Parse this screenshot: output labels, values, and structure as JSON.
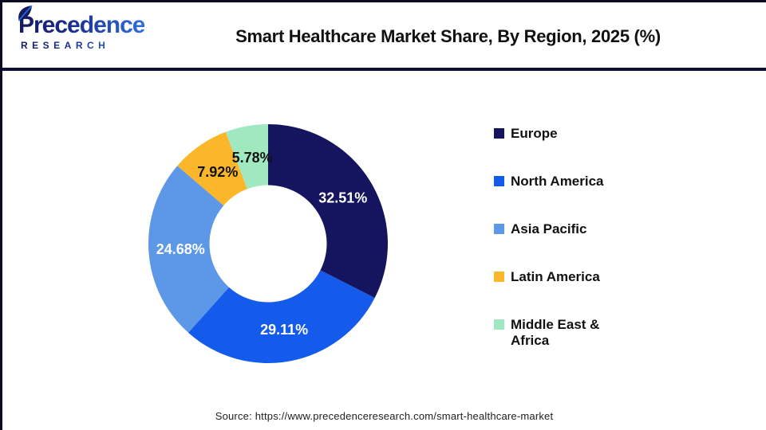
{
  "brand": {
    "logo_text": "Precedence",
    "logo_subtext": "RESEARCH",
    "logo_color_dark": "#141A5E",
    "logo_color_blue": "#2F6FE4"
  },
  "chart_data": {
    "type": "pie",
    "donut": true,
    "title": "Smart Healthcare Market Share, By Region, 2025 (%)",
    "unit": "%",
    "direction": "clockwise",
    "start_angle_deg": 0,
    "inner_radius_ratio": 0.49,
    "legend_position": "right",
    "series": [
      {
        "name": "Europe",
        "value": 32.51,
        "label": "32.51%",
        "color": "#14145F",
        "label_color": "#FFFFFF"
      },
      {
        "name": "North America",
        "value": 29.11,
        "label": "29.11%",
        "color": "#155BEB",
        "label_color": "#FFFFFF"
      },
      {
        "name": "Asia Pacific",
        "value": 24.68,
        "label": "24.68%",
        "color": "#5C97E8",
        "label_color": "#FFFFFF"
      },
      {
        "name": "Latin America",
        "value": 7.92,
        "label": "7.92%",
        "color": "#FBB729",
        "label_color": "#111111"
      },
      {
        "name": "Middle East & Africa",
        "value": 5.78,
        "label": "5.78%",
        "color": "#A0E8C0",
        "label_color": "#111111"
      }
    ]
  },
  "footer": {
    "source": "Source: https://www.precedenceresearch.com/smart-healthcare-market"
  },
  "theme": {
    "separator_color": "#0E0E35",
    "background": "#FFFFFF",
    "title_color": "#111111"
  }
}
